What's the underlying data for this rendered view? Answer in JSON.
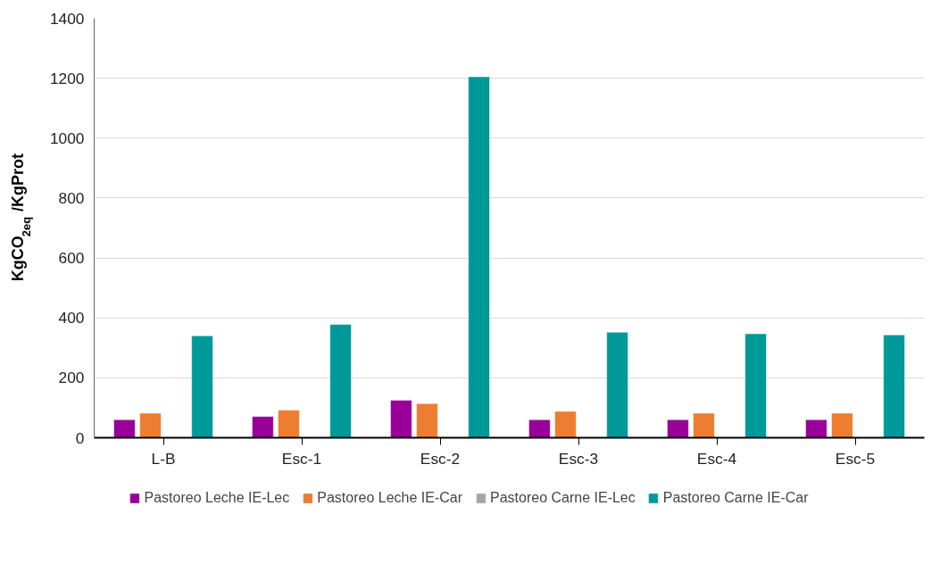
{
  "chart_data": {
    "type": "bar",
    "ylabel": "KgCO$_{2eq}$ /KgProt",
    "categories": [
      "L-B",
      "Esc-1",
      "Esc-2",
      "Esc-3",
      "Esc-4",
      "Esc-5"
    ],
    "series": [
      {
        "name": "Pastoreo Leche IE-Lec",
        "color": "#990099",
        "values": [
          60,
          71,
          125,
          60,
          60,
          60
        ]
      },
      {
        "name": "Pastoreo Leche IE-Car",
        "color": "#ed7d31",
        "values": [
          82,
          92,
          114,
          88,
          82,
          82
        ]
      },
      {
        "name": "Pastoreo Carne IE-Lec",
        "color": "#a5a5a5",
        "values": [
          null,
          null,
          null,
          null,
          null,
          null
        ]
      },
      {
        "name": "Pastoreo Carne IE-Car",
        "color": "#009999",
        "values": [
          340,
          378,
          1205,
          352,
          347,
          343
        ]
      }
    ],
    "ylim": [
      0,
      1400
    ],
    "yticks": [
      0,
      200,
      400,
      600,
      800,
      1000,
      1200,
      1400
    ],
    "grid": "y",
    "legend": "bottom"
  }
}
